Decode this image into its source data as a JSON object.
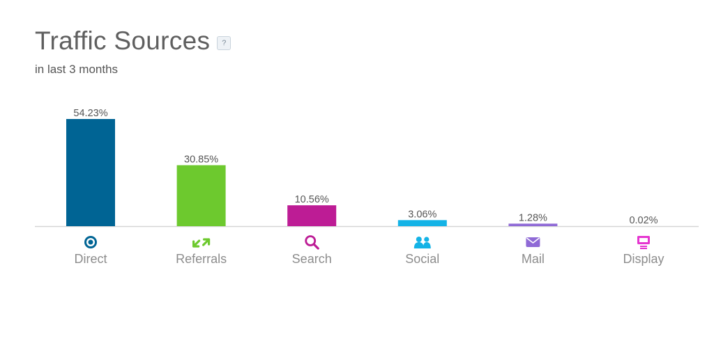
{
  "header": {
    "title": "Traffic Sources",
    "help_label": "?",
    "subtitle": "in last 3 months"
  },
  "chart_data": {
    "type": "bar",
    "title": "Traffic Sources",
    "subtitle": "in last 3 months",
    "categories": [
      "Direct",
      "Referrals",
      "Search",
      "Social",
      "Mail",
      "Display"
    ],
    "values": [
      54.23,
      30.85,
      10.56,
      3.06,
      1.28,
      0.02
    ],
    "value_labels": [
      "54.23%",
      "30.85%",
      "10.56%",
      "3.06%",
      "1.28%",
      "0.02%"
    ],
    "unit": "%",
    "colors": [
      "#006494",
      "#6dc92e",
      "#bd1c95",
      "#14b3e6",
      "#8f6ad6",
      "#e535d0"
    ],
    "icons": [
      "target-icon",
      "referrals-arrows-icon",
      "search-icon",
      "social-users-icon",
      "mail-icon",
      "display-icon"
    ],
    "ylim": [
      0,
      54.23
    ],
    "grid": false,
    "legend": "none",
    "xlabel": "",
    "ylabel": ""
  }
}
